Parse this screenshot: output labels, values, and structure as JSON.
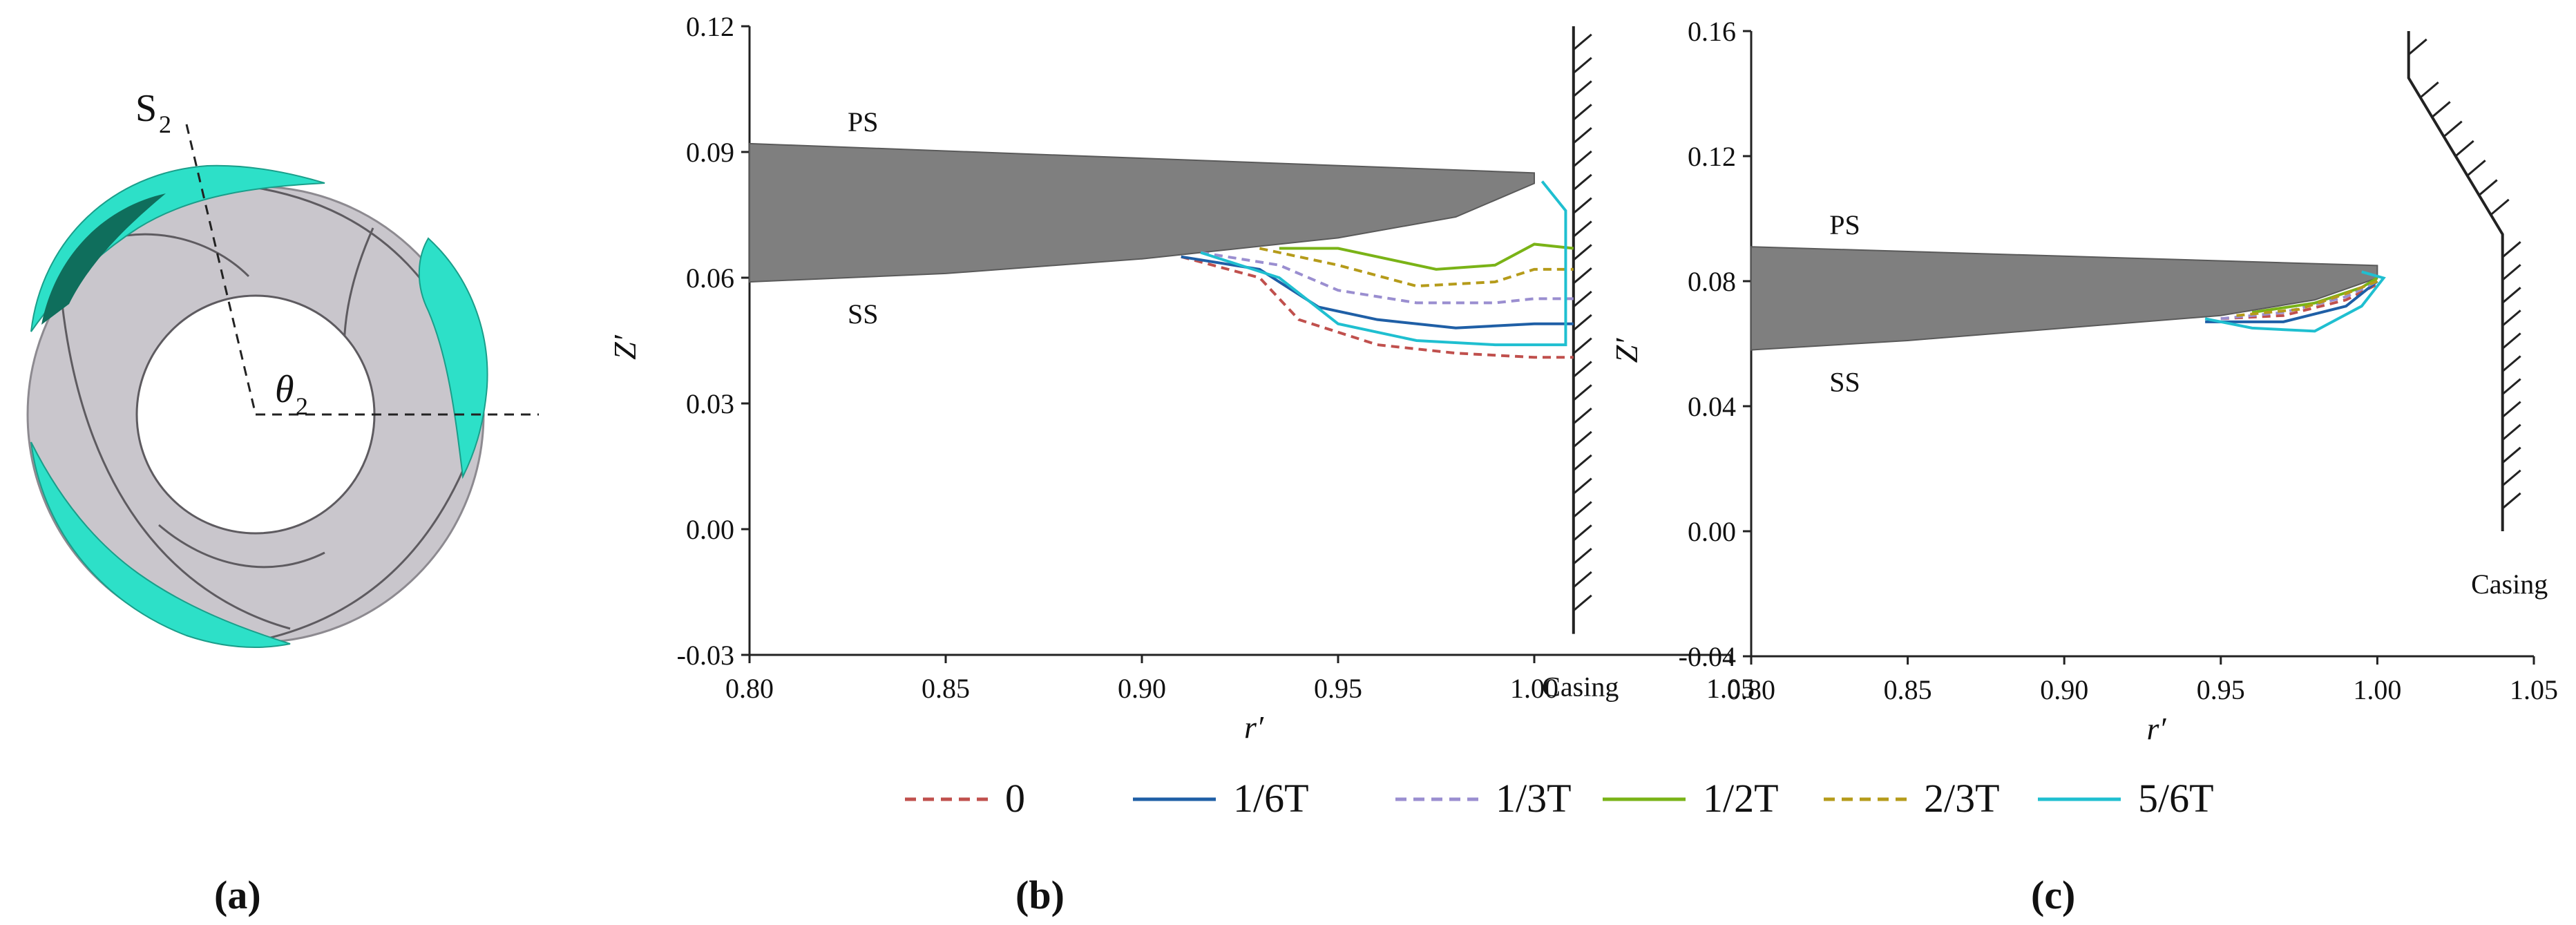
{
  "panel_labels": [
    "(a)",
    "(b)",
    "(c)"
  ],
  "diagram_a": {
    "section_label": "S",
    "section_sub": "2",
    "angle_label": "θ",
    "angle_sub": "2",
    "colors": {
      "impeller": "#c9c6cc",
      "hub_edge": "#5e5b60",
      "cavity": "#2de0c8",
      "cavity_dark": "#0f6e5c"
    }
  },
  "legend": [
    {
      "name": "0",
      "color": "#c0504d",
      "dash": true
    },
    {
      "name": "1/6T",
      "color": "#1f5fa6",
      "dash": false
    },
    {
      "name": "1/3T",
      "color": "#9a8ed0",
      "dash": true
    },
    {
      "name": "1/2T",
      "color": "#7ab317",
      "dash": false
    },
    {
      "name": "2/3T",
      "color": "#b59b1a",
      "dash": true
    },
    {
      "name": "5/6T",
      "color": "#1fbfd0",
      "dash": false
    }
  ],
  "chart_data": [
    {
      "id": "b",
      "type": "line",
      "xlabel": "r′",
      "ylabel": "Z′",
      "xlim": [
        0.8,
        1.05
      ],
      "ylim": [
        -0.03,
        0.12
      ],
      "xticks": [
        "0.80",
        "0.85",
        "0.90",
        "0.95",
        "1.00",
        "1.05"
      ],
      "yticks": [
        "-0.03",
        "0.00",
        "0.03",
        "0.06",
        "0.09",
        "0.12"
      ],
      "blade": {
        "ps_label": "PS",
        "ss_label": "SS",
        "tip_r": 1.0,
        "ps_z": [
          0.092,
          0.085
        ],
        "ss": [
          [
            0.8,
            0.059
          ],
          [
            0.85,
            0.061
          ],
          [
            0.9,
            0.0645
          ],
          [
            0.95,
            0.0695
          ],
          [
            0.98,
            0.0745
          ],
          [
            1.0,
            0.0825
          ]
        ]
      },
      "casing": {
        "label": "Casing",
        "points": [
          [
            1.01,
            0.12
          ],
          [
            1.01,
            -0.025
          ]
        ]
      },
      "series": [
        {
          "name": "0",
          "points": [
            [
              0.91,
              0.065
            ],
            [
              0.93,
              0.06
            ],
            [
              0.94,
              0.05
            ],
            [
              0.96,
              0.044
            ],
            [
              0.98,
              0.042
            ],
            [
              1.0,
              0.041
            ],
            [
              1.01,
              0.041
            ]
          ]
        },
        {
          "name": "1/6T",
          "points": [
            [
              0.91,
              0.065
            ],
            [
              0.93,
              0.062
            ],
            [
              0.945,
              0.053
            ],
            [
              0.96,
              0.05
            ],
            [
              0.98,
              0.048
            ],
            [
              1.0,
              0.049
            ],
            [
              1.01,
              0.049
            ]
          ]
        },
        {
          "name": "1/3T",
          "points": [
            [
              0.915,
              0.066
            ],
            [
              0.935,
              0.063
            ],
            [
              0.95,
              0.057
            ],
            [
              0.97,
              0.054
            ],
            [
              0.99,
              0.054
            ],
            [
              1.0,
              0.055
            ],
            [
              1.01,
              0.055
            ]
          ]
        },
        {
          "name": "1/2T",
          "points": [
            [
              0.935,
              0.067
            ],
            [
              0.95,
              0.067
            ],
            [
              0.975,
              0.062
            ],
            [
              0.99,
              0.063
            ],
            [
              1.0,
              0.068
            ],
            [
              1.01,
              0.067
            ]
          ]
        },
        {
          "name": "2/3T",
          "points": [
            [
              0.93,
              0.067
            ],
            [
              0.95,
              0.063
            ],
            [
              0.97,
              0.058
            ],
            [
              0.99,
              0.059
            ],
            [
              1.0,
              0.062
            ],
            [
              1.01,
              0.062
            ]
          ]
        },
        {
          "name": "5/6T",
          "points": [
            [
              0.915,
              0.066
            ],
            [
              0.935,
              0.06
            ],
            [
              0.95,
              0.049
            ],
            [
              0.97,
              0.045
            ],
            [
              0.99,
              0.044
            ],
            [
              1.0,
              0.044
            ],
            [
              1.008,
              0.044
            ],
            [
              1.008,
              0.076
            ],
            [
              1.002,
              0.083
            ]
          ]
        }
      ]
    },
    {
      "id": "c",
      "type": "line",
      "xlabel": "r′",
      "ylabel": "Z′",
      "xlim": [
        0.8,
        1.05
      ],
      "ylim": [
        -0.04,
        0.16
      ],
      "xticks": [
        "0.80",
        "0.85",
        "0.90",
        "0.95",
        "1.00",
        "1.05"
      ],
      "yticks": [
        "-0.04",
        "0.00",
        "0.04",
        "0.08",
        "0.12",
        "0.16"
      ],
      "blade": {
        "ps_label": "PS",
        "ss_label": "SS",
        "tip_r": 1.0,
        "ps_z": [
          0.091,
          0.085
        ],
        "ss": [
          [
            0.8,
            0.058
          ],
          [
            0.85,
            0.061
          ],
          [
            0.9,
            0.065
          ],
          [
            0.95,
            0.069
          ],
          [
            0.98,
            0.074
          ],
          [
            1.0,
            0.081
          ]
        ]
      },
      "casing": {
        "label": "Casing",
        "points": [
          [
            1.01,
            0.16
          ],
          [
            1.01,
            0.145
          ],
          [
            1.04,
            0.095
          ],
          [
            1.04,
            0.0
          ]
        ]
      },
      "series": [
        {
          "name": "0",
          "points": [
            [
              0.95,
              0.068
            ],
            [
              0.97,
              0.069
            ],
            [
              0.99,
              0.074
            ],
            [
              1.0,
              0.079
            ]
          ]
        },
        {
          "name": "1/6T",
          "points": [
            [
              0.945,
              0.067
            ],
            [
              0.97,
              0.067
            ],
            [
              0.99,
              0.072
            ],
            [
              1.0,
              0.08
            ]
          ]
        },
        {
          "name": "1/3T",
          "points": [
            [
              0.95,
              0.068
            ],
            [
              0.97,
              0.07
            ],
            [
              0.99,
              0.075
            ],
            [
              1.0,
              0.08
            ]
          ]
        },
        {
          "name": "1/2T",
          "points": [
            [
              0.96,
              0.07
            ],
            [
              0.98,
              0.073
            ],
            [
              0.995,
              0.078
            ],
            [
              1.0,
              0.081
            ]
          ]
        },
        {
          "name": "2/3T",
          "points": [
            [
              0.955,
              0.069
            ],
            [
              0.975,
              0.071
            ],
            [
              0.99,
              0.076
            ],
            [
              1.0,
              0.08
            ]
          ]
        },
        {
          "name": "5/6T",
          "points": [
            [
              0.945,
              0.068
            ],
            [
              0.96,
              0.065
            ],
            [
              0.98,
              0.064
            ],
            [
              0.995,
              0.072
            ],
            [
              1.002,
              0.081
            ],
            [
              0.995,
              0.083
            ]
          ]
        }
      ]
    }
  ]
}
